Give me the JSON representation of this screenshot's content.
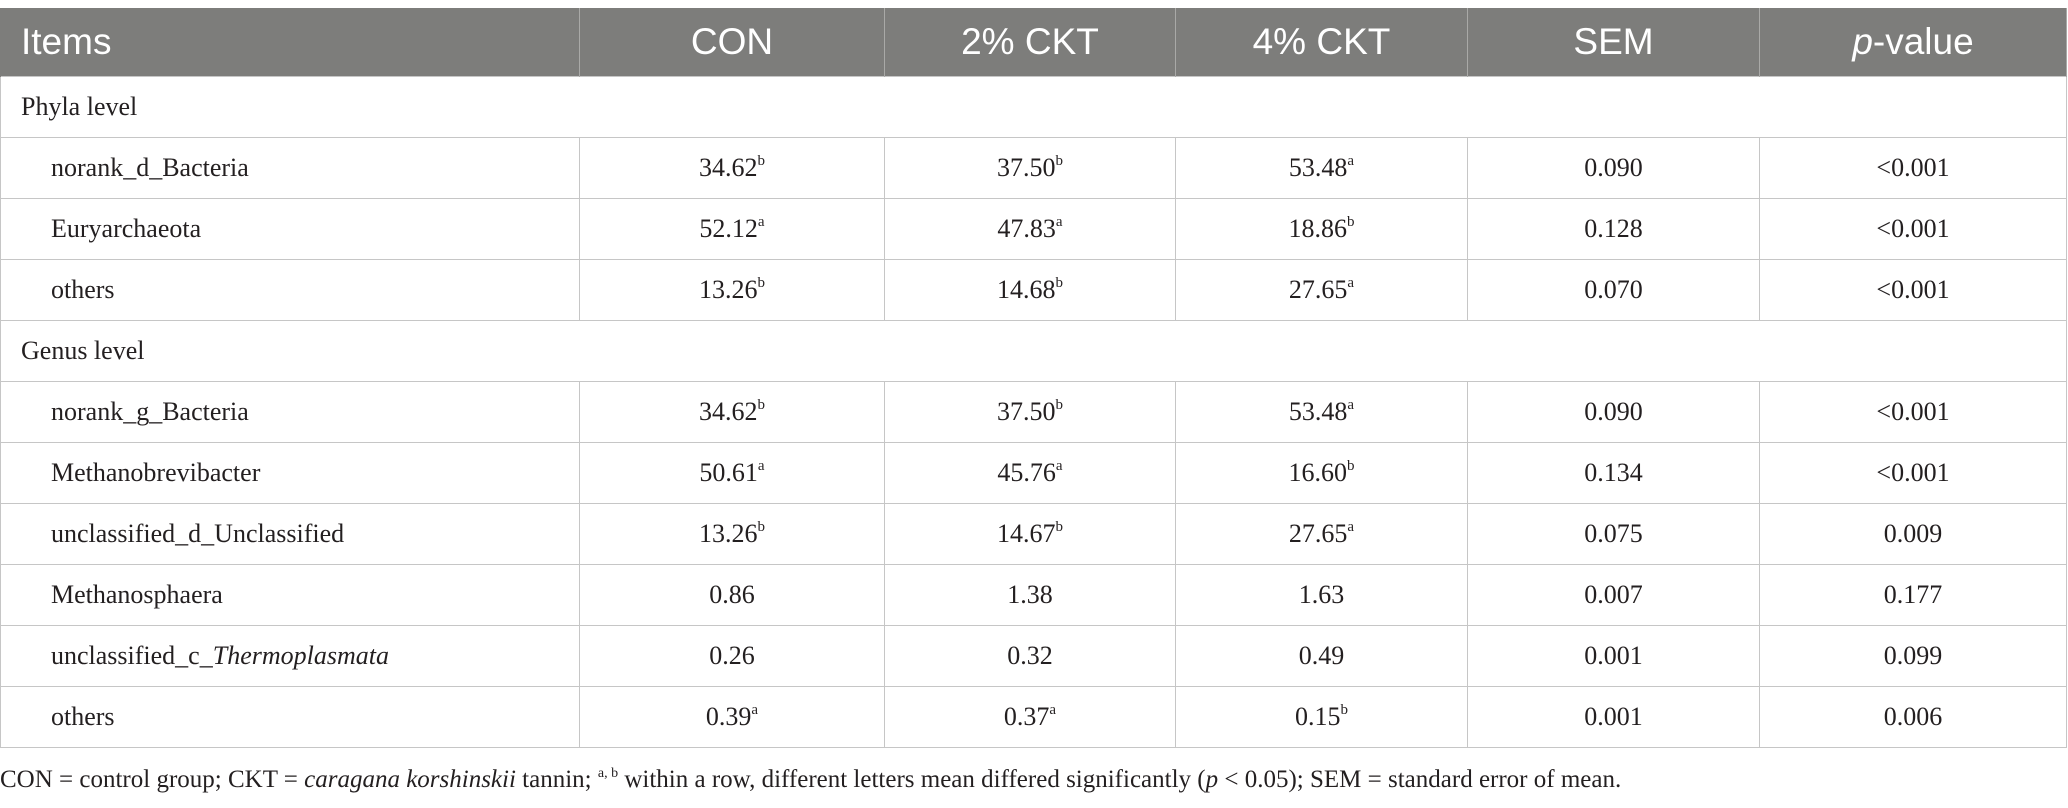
{
  "table": {
    "headers": [
      "Items",
      "CON",
      "2% CKT",
      "4% CKT",
      "SEM",
      "-value"
    ],
    "header_p": "p",
    "sections": [
      {
        "label": "Phyla level",
        "rows": [
          {
            "item": "norank_d_Bacteria",
            "con": "34.62",
            "con_sup": "b",
            "ckt2": "37.50",
            "ckt2_sup": "b",
            "ckt4": "53.48",
            "ckt4_sup": "a",
            "sem": "0.090",
            "p": "<0.001"
          },
          {
            "item": "Euryarchaeota",
            "con": "52.12",
            "con_sup": "a",
            "ckt2": "47.83",
            "ckt2_sup": "a",
            "ckt4": "18.86",
            "ckt4_sup": "b",
            "sem": "0.128",
            "p": "<0.001"
          },
          {
            "item": "others",
            "con": "13.26",
            "con_sup": "b",
            "ckt2": "14.68",
            "ckt2_sup": "b",
            "ckt4": "27.65",
            "ckt4_sup": "a",
            "sem": "0.070",
            "p": "<0.001"
          }
        ]
      },
      {
        "label": "Genus level",
        "rows": [
          {
            "item": "norank_g_Bacteria",
            "con": "34.62",
            "con_sup": "b",
            "ckt2": "37.50",
            "ckt2_sup": "b",
            "ckt4": "53.48",
            "ckt4_sup": "a",
            "sem": "0.090",
            "p": "<0.001"
          },
          {
            "item": "Methanobrevibacter",
            "con": "50.61",
            "con_sup": "a",
            "ckt2": "45.76",
            "ckt2_sup": "a",
            "ckt4": "16.60",
            "ckt4_sup": "b",
            "sem": "0.134",
            "p": "<0.001"
          },
          {
            "item": "unclassified_d_Unclassified",
            "con": "13.26",
            "con_sup": "b",
            "ckt2": "14.67",
            "ckt2_sup": "b",
            "ckt4": "27.65",
            "ckt4_sup": "a",
            "sem": "0.075",
            "p": "0.009"
          },
          {
            "item": "Methanosphaera",
            "con": "0.86",
            "con_sup": "",
            "ckt2": "1.38",
            "ckt2_sup": "",
            "ckt4": "1.63",
            "ckt4_sup": "",
            "sem": "0.007",
            "p": "0.177"
          },
          {
            "item": "unclassified_c_",
            "item_italic": "Thermoplasmata",
            "con": "0.26",
            "con_sup": "",
            "ckt2": "0.32",
            "ckt2_sup": "",
            "ckt4": "0.49",
            "ckt4_sup": "",
            "sem": "0.001",
            "p": "0.099"
          },
          {
            "item": "others",
            "con": "0.39",
            "con_sup": "a",
            "ckt2": "0.37",
            "ckt2_sup": "a",
            "ckt4": "0.15",
            "ckt4_sup": "b",
            "sem": "0.001",
            "p": "0.006"
          }
        ]
      }
    ]
  },
  "footnote": {
    "part1": "CON = control group; CKT = ",
    "part2_italic": "caragana korshinskii",
    "part3": " tannin; ",
    "sup": "a, b",
    "part4": " within a row, different letters mean differed significantly (",
    "part5_italic": "p",
    "part6": " < 0.05); SEM = standard error of mean."
  }
}
